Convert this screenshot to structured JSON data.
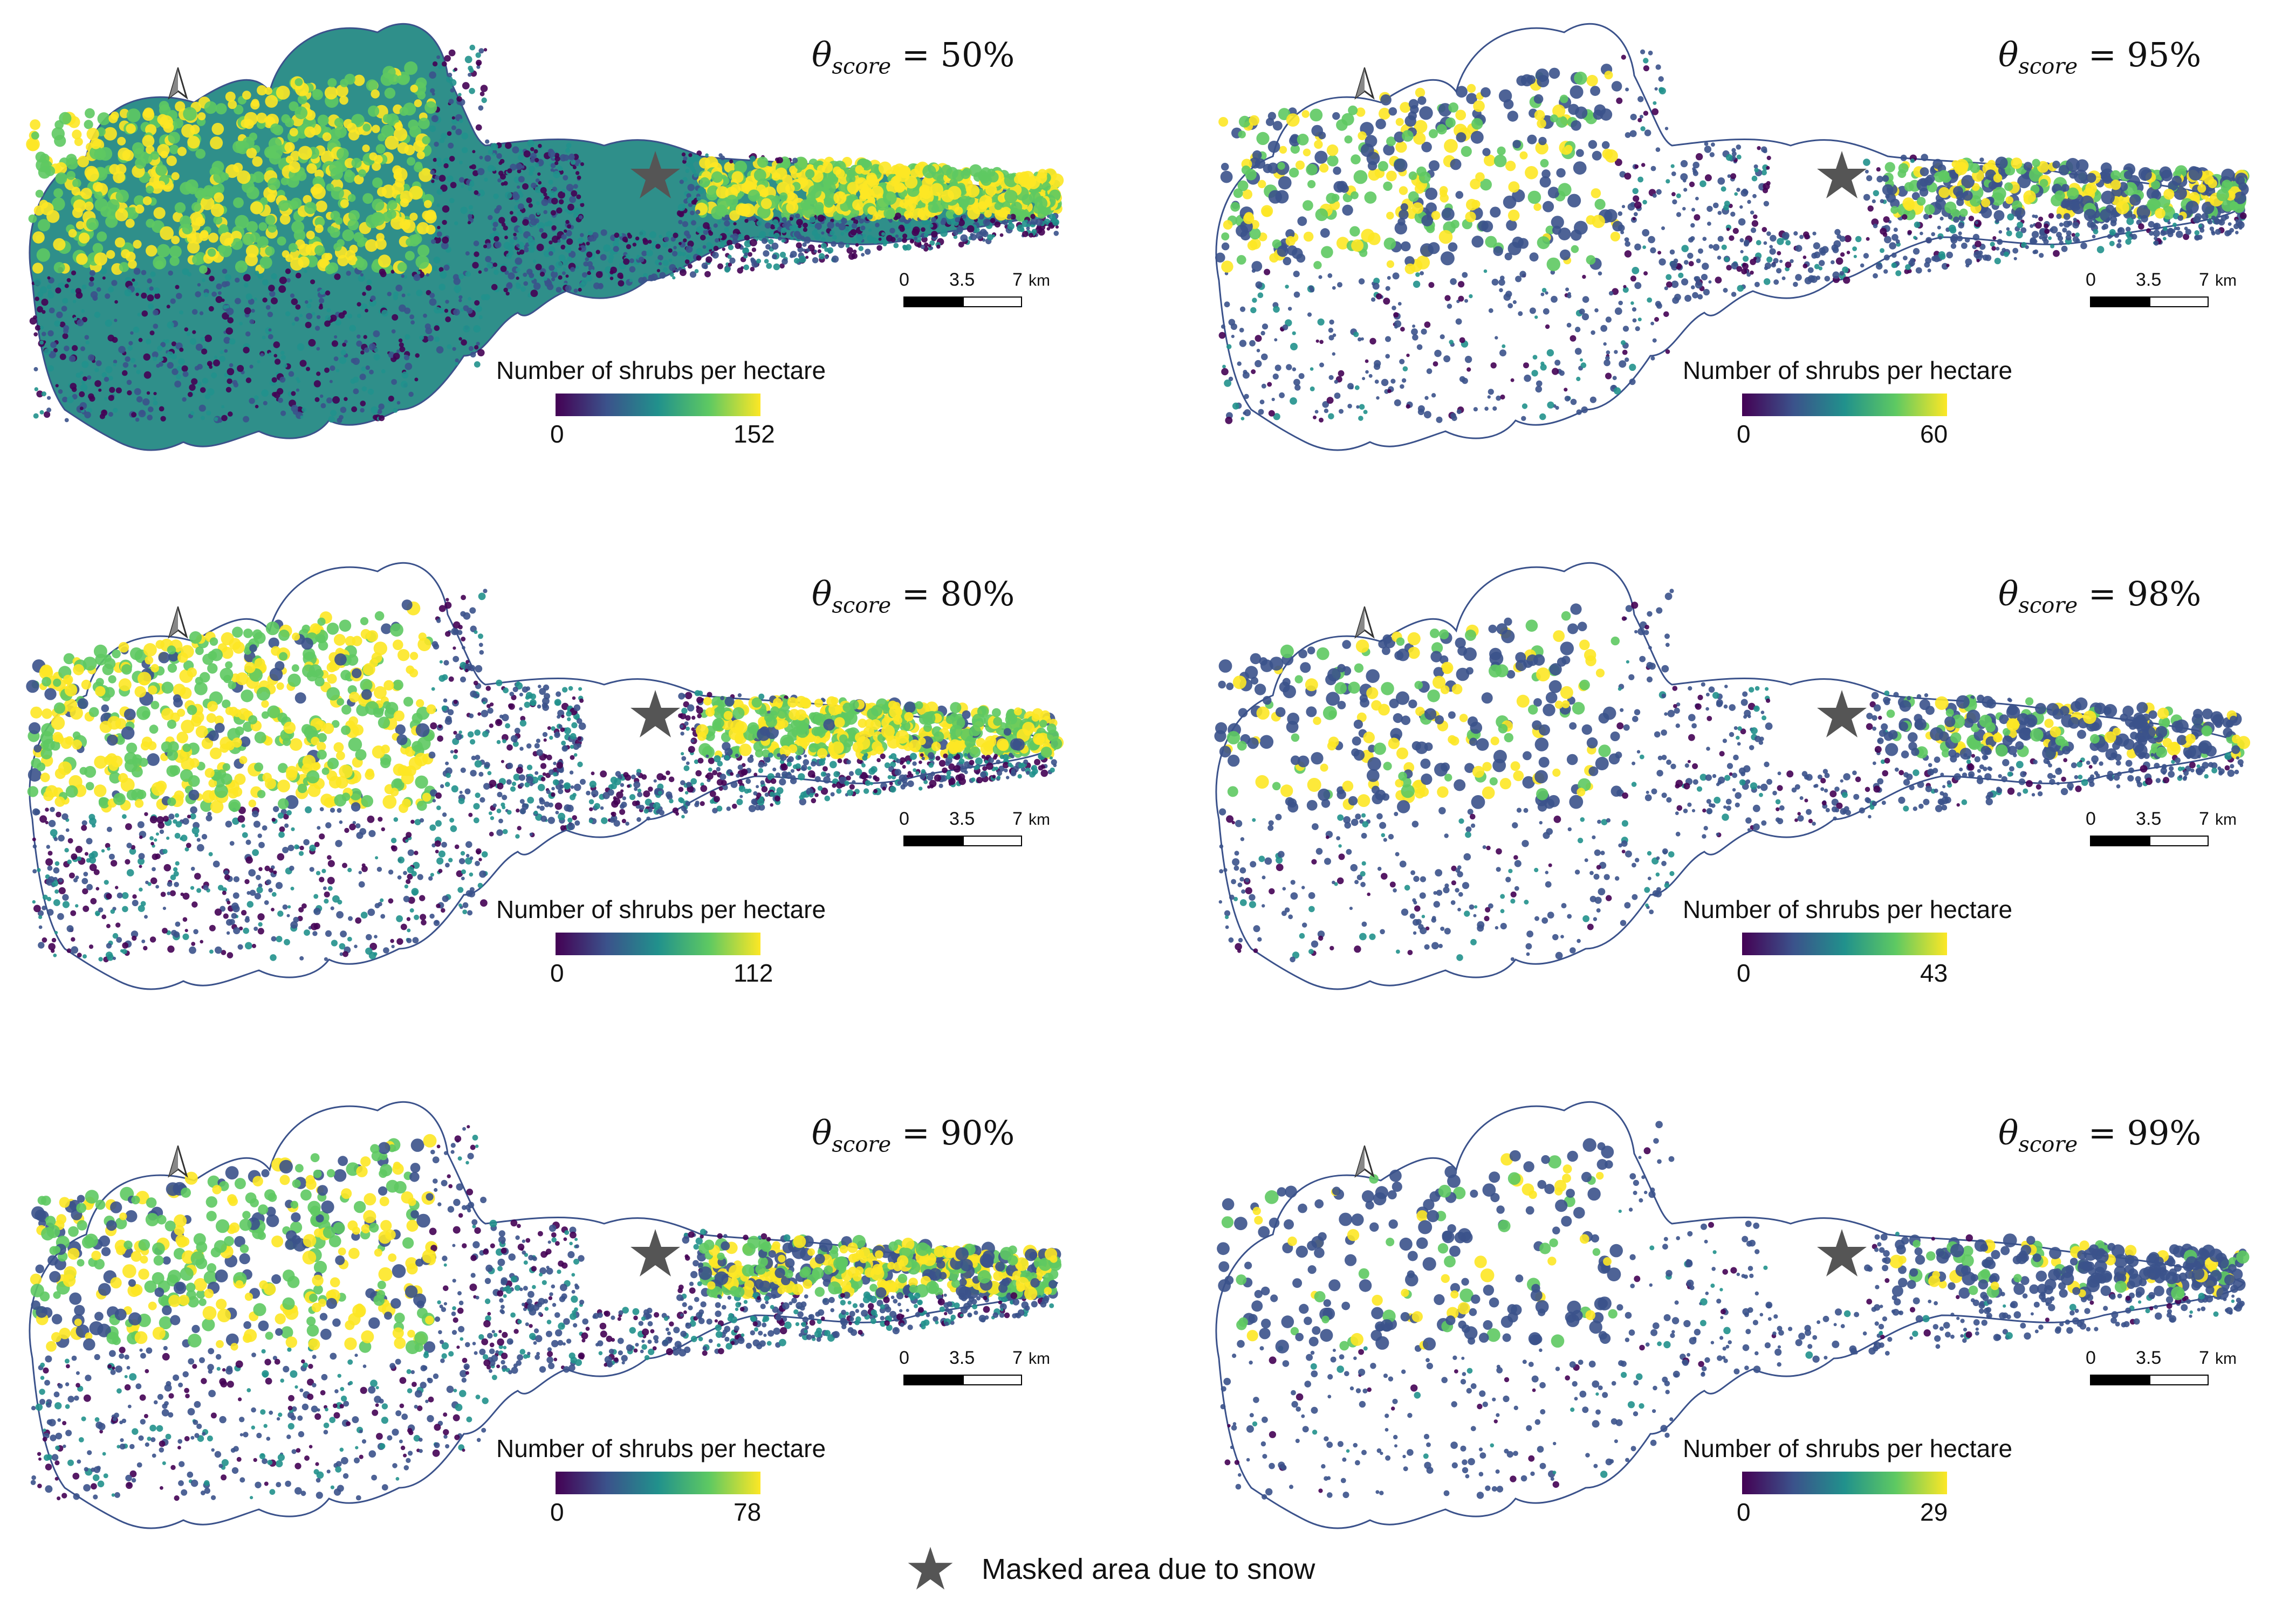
{
  "panels": [
    {
      "theta_label": "θ",
      "theta_sub": "score",
      "theta_value": "= 50%",
      "legend_title": "Number of shrubs per hectare",
      "legend_min": "0",
      "legend_max": "152",
      "density": 1.0
    },
    {
      "theta_label": "θ",
      "theta_sub": "score",
      "theta_value": "=  95%",
      "legend_title": "Number of shrubs per hectare",
      "legend_min": "0",
      "legend_max": "60",
      "density": 0.45
    },
    {
      "theta_label": "θ",
      "theta_sub": "score",
      "theta_value": "= 80%",
      "legend_title": "Number of shrubs per hectare",
      "legend_min": "0",
      "legend_max": "112",
      "density": 0.8
    },
    {
      "theta_label": "θ",
      "theta_sub": "score",
      "theta_value": "=  98%",
      "legend_title": "Number of shrubs per hectare",
      "legend_min": "0",
      "legend_max": "43",
      "density": 0.3
    },
    {
      "theta_label": "θ",
      "theta_sub": "score",
      "theta_value": "=  90%",
      "legend_title": "Number of shrubs per hectare",
      "legend_min": "0",
      "legend_max": "78",
      "density": 0.6
    },
    {
      "theta_label": "θ",
      "theta_sub": "score",
      "theta_value": "=  99%",
      "legend_title": "Number of shrubs per hectare",
      "legend_min": "0",
      "legend_max": "29",
      "density": 0.2
    }
  ],
  "scale": {
    "tick_0": "0",
    "tick_1": "3.5",
    "tick_2": "7",
    "unit": "km"
  },
  "colormap": [
    "#440154",
    "#3b528b",
    "#21918c",
    "#5ec962",
    "#fde725"
  ],
  "star_color": "#555555",
  "footer": {
    "label": "Masked area due to snow"
  }
}
